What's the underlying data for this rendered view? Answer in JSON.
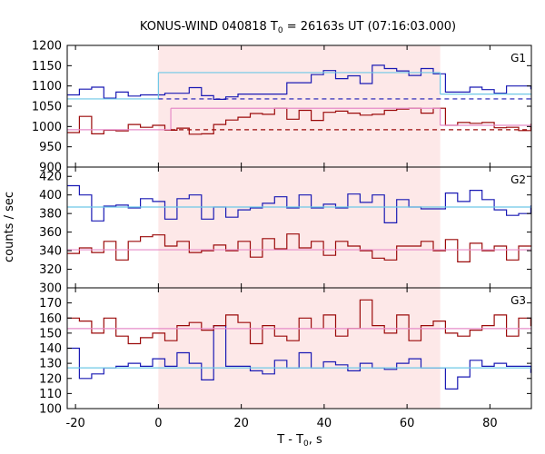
{
  "chart_data": {
    "type": "line",
    "title": "KONUS-WIND 040818 T0 = 26163s UT (07:16:03.000)",
    "title_parts": {
      "prefix": "KONUS-WIND 040818 T",
      "sub": "0",
      "suffix": " = 26163s UT (07:16:03.000)"
    },
    "xlabel": "T - T0, s",
    "xlabel_parts": {
      "prefix": "T - T",
      "sub": "0",
      "suffix": ", s"
    },
    "ylabel": "counts / sec",
    "xlim": [
      -22,
      90
    ],
    "x_ticks": [
      -20,
      0,
      20,
      40,
      60,
      80
    ],
    "x_tick_labels": [
      "-20",
      "0",
      "20",
      "40",
      "60",
      "80"
    ],
    "shaded_interval": [
      0,
      68
    ],
    "colors": {
      "blue": "#1a1ab4",
      "red": "#9b0a0a",
      "cyan": "#6ec8e6",
      "pink": "#e68cc8",
      "shade": "#fde8e8"
    },
    "panels": [
      {
        "label": "G1",
        "ylim": [
          900,
          1200
        ],
        "y_ticks": [
          900,
          950,
          1000,
          1050,
          1100,
          1150,
          1200
        ],
        "y_tick_labels": [
          "900",
          "950",
          "1000",
          "1050",
          "1100",
          "1150",
          "1200"
        ],
        "series": [
          {
            "color": "blue",
            "x0": -22,
            "step": 2.944,
            "values": [
              1078,
              1092,
              1097,
              1070,
              1085,
              1075,
              1078,
              1078,
              1082,
              1082,
              1096,
              1076,
              1067,
              1073,
              1080,
              1080,
              1080,
              1080,
              1108,
              1108,
              1128,
              1138,
              1118,
              1125,
              1106,
              1151,
              1143,
              1137,
              1126,
              1143,
              1130,
              1085,
              1085,
              1097,
              1091,
              1082,
              1100,
              1100,
              1093,
              1090
            ]
          },
          {
            "color": "red",
            "x0": -22,
            "step": 2.944,
            "values": [
              985,
              1025,
              982,
              991,
              989,
              1005,
              998,
              1003,
              991,
              996,
              981,
              982,
              1005,
              1016,
              1023,
              1032,
              1030,
              1045,
              1018,
              1040,
              1015,
              1035,
              1038,
              1033,
              1028,
              1030,
              1040,
              1043,
              1045,
              1033,
              1045,
              1003,
              1010,
              1008,
              1010,
              997,
              998,
              990,
              1005,
              995
            ]
          },
          {
            "color": "cyan",
            "level_segments": [
              [
                -22,
                0,
                1068
              ],
              [
                0,
                68,
                1133
              ],
              [
                68,
                90,
                1080
              ]
            ]
          },
          {
            "color": "pink",
            "level_segments": [
              [
                -22,
                3,
                992
              ],
              [
                3,
                68,
                1045
              ],
              [
                68,
                90,
                1003
              ]
            ]
          },
          {
            "color": "blue",
            "dashed": true,
            "level_segments": [
              [
                0,
                90,
                1068
              ]
            ]
          },
          {
            "color": "red",
            "dashed": true,
            "level_segments": [
              [
                3,
                90,
                992
              ]
            ]
          }
        ]
      },
      {
        "label": "G2",
        "ylim": [
          300,
          430
        ],
        "y_ticks": [
          300,
          320,
          340,
          360,
          380,
          400,
          420
        ],
        "y_tick_labels": [
          "300",
          "320",
          "340",
          "360",
          "380",
          "400",
          "420"
        ],
        "series": [
          {
            "color": "blue",
            "x0": -22,
            "step": 2.944,
            "values": [
              410,
              400,
              372,
              388,
              389,
              386,
              396,
              393,
              374,
              396,
              400,
              374,
              387,
              376,
              384,
              386,
              391,
              398,
              386,
              400,
              386,
              390,
              386,
              401,
              392,
              400,
              370,
              395,
              387,
              385,
              385,
              402,
              393,
              405,
              395,
              384,
              378,
              380,
              388,
              386
            ]
          },
          {
            "color": "red",
            "x0": -22,
            "step": 2.944,
            "values": [
              337,
              343,
              338,
              350,
              330,
              350,
              355,
              357,
              345,
              350,
              338,
              340,
              346,
              340,
              350,
              333,
              353,
              342,
              358,
              343,
              350,
              335,
              350,
              345,
              340,
              332,
              330,
              345,
              345,
              350,
              340,
              352,
              328,
              348,
              340,
              345,
              330,
              345,
              345,
              335
            ]
          },
          {
            "color": "cyan",
            "level_segments": [
              [
                -22,
                90,
                387
              ]
            ]
          },
          {
            "color": "pink",
            "level_segments": [
              [
                -22,
                90,
                341
              ]
            ]
          }
        ]
      },
      {
        "label": "G3",
        "ylim": [
          100,
          180
        ],
        "y_ticks": [
          100,
          110,
          120,
          130,
          140,
          150,
          160,
          170
        ],
        "y_tick_labels": [
          "100",
          "110",
          "120",
          "130",
          "140",
          "150",
          "160",
          "170"
        ],
        "series": [
          {
            "color": "blue",
            "x0": -22,
            "step": 2.944,
            "values": [
              140,
              120,
              123,
              127,
              128,
              130,
              128,
              133,
              128,
              137,
              130,
              119,
              155,
              128,
              128,
              125,
              123,
              132,
              127,
              137,
              127,
              131,
              129,
              125,
              130,
              127,
              126,
              130,
              133,
              127,
              127,
              113,
              121,
              132,
              128,
              130,
              128,
              128,
              124,
              125
            ]
          },
          {
            "color": "red",
            "x0": -22,
            "step": 2.944,
            "values": [
              160,
              158,
              150,
              160,
              148,
              143,
              147,
              150,
              145,
              155,
              157,
              152,
              155,
              162,
              157,
              143,
              155,
              148,
              145,
              160,
              153,
              162,
              148,
              153,
              172,
              155,
              150,
              162,
              145,
              155,
              158,
              150,
              148,
              152,
              155,
              162,
              148,
              160,
              155,
              150
            ]
          },
          {
            "color": "cyan",
            "level_segments": [
              [
                -22,
                90,
                127
              ]
            ]
          },
          {
            "color": "pink",
            "level_segments": [
              [
                -22,
                90,
                153
              ]
            ]
          }
        ]
      }
    ]
  }
}
